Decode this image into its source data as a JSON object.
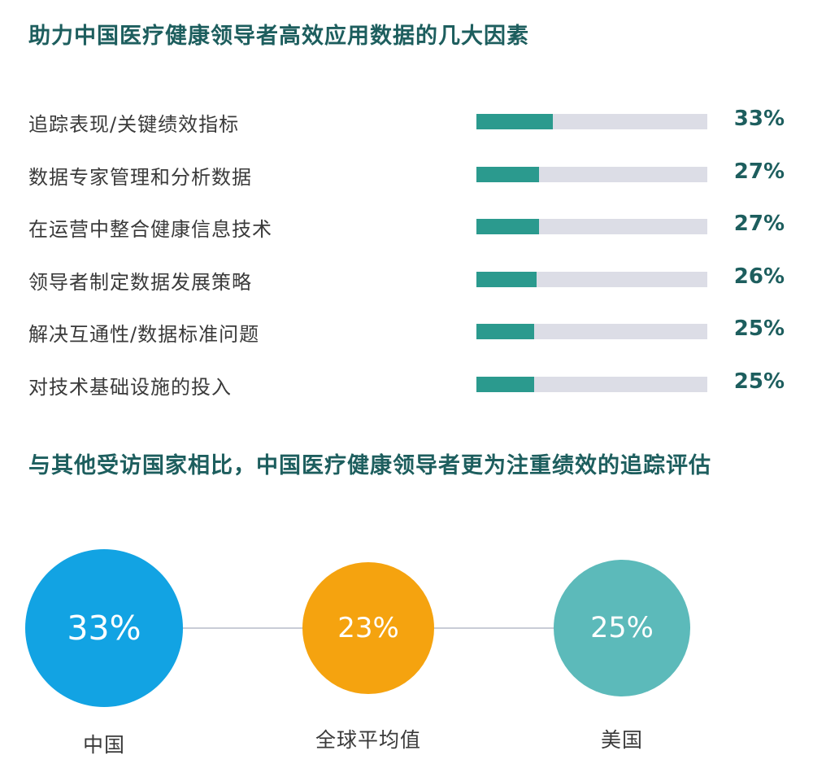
{
  "section1": {
    "title": "助力中国医疗健康领导者高效应用数据的几大因素"
  },
  "section2": {
    "title": "与其他受访国家相比，中国医疗健康领导者更为注重绩效的追踪评估"
  },
  "colors": {
    "title": "#1d5e5e",
    "bar_fill": "#2b9a8e",
    "bar_track": "#dcdde6",
    "china": "#12a3e3",
    "global": "#f5a30f",
    "usa": "#5cbaba"
  },
  "chart_data": [
    {
      "type": "bar",
      "orientation": "horizontal",
      "categories": [
        "追踪表现/关键绩效指标",
        "数据专家管理和分析数据",
        "在运营中整合健康信息技术",
        "领导者制定数据发展策略",
        "解决互通性/数据标准问题",
        "对技术基础设施的投入"
      ],
      "values": [
        33,
        27,
        27,
        26,
        25,
        25
      ],
      "value_labels": [
        "33%",
        "27%",
        "27%",
        "26%",
        "25%",
        "25%"
      ],
      "xlim": [
        0,
        100
      ],
      "grid": false
    },
    {
      "type": "bubble",
      "categories": [
        "中国",
        "全球平均值",
        "美国"
      ],
      "values": [
        33,
        23,
        25
      ],
      "value_labels": [
        "33%",
        "23%",
        "25%"
      ],
      "colors": [
        "#12a3e3",
        "#f5a30f",
        "#5cbaba"
      ]
    }
  ]
}
